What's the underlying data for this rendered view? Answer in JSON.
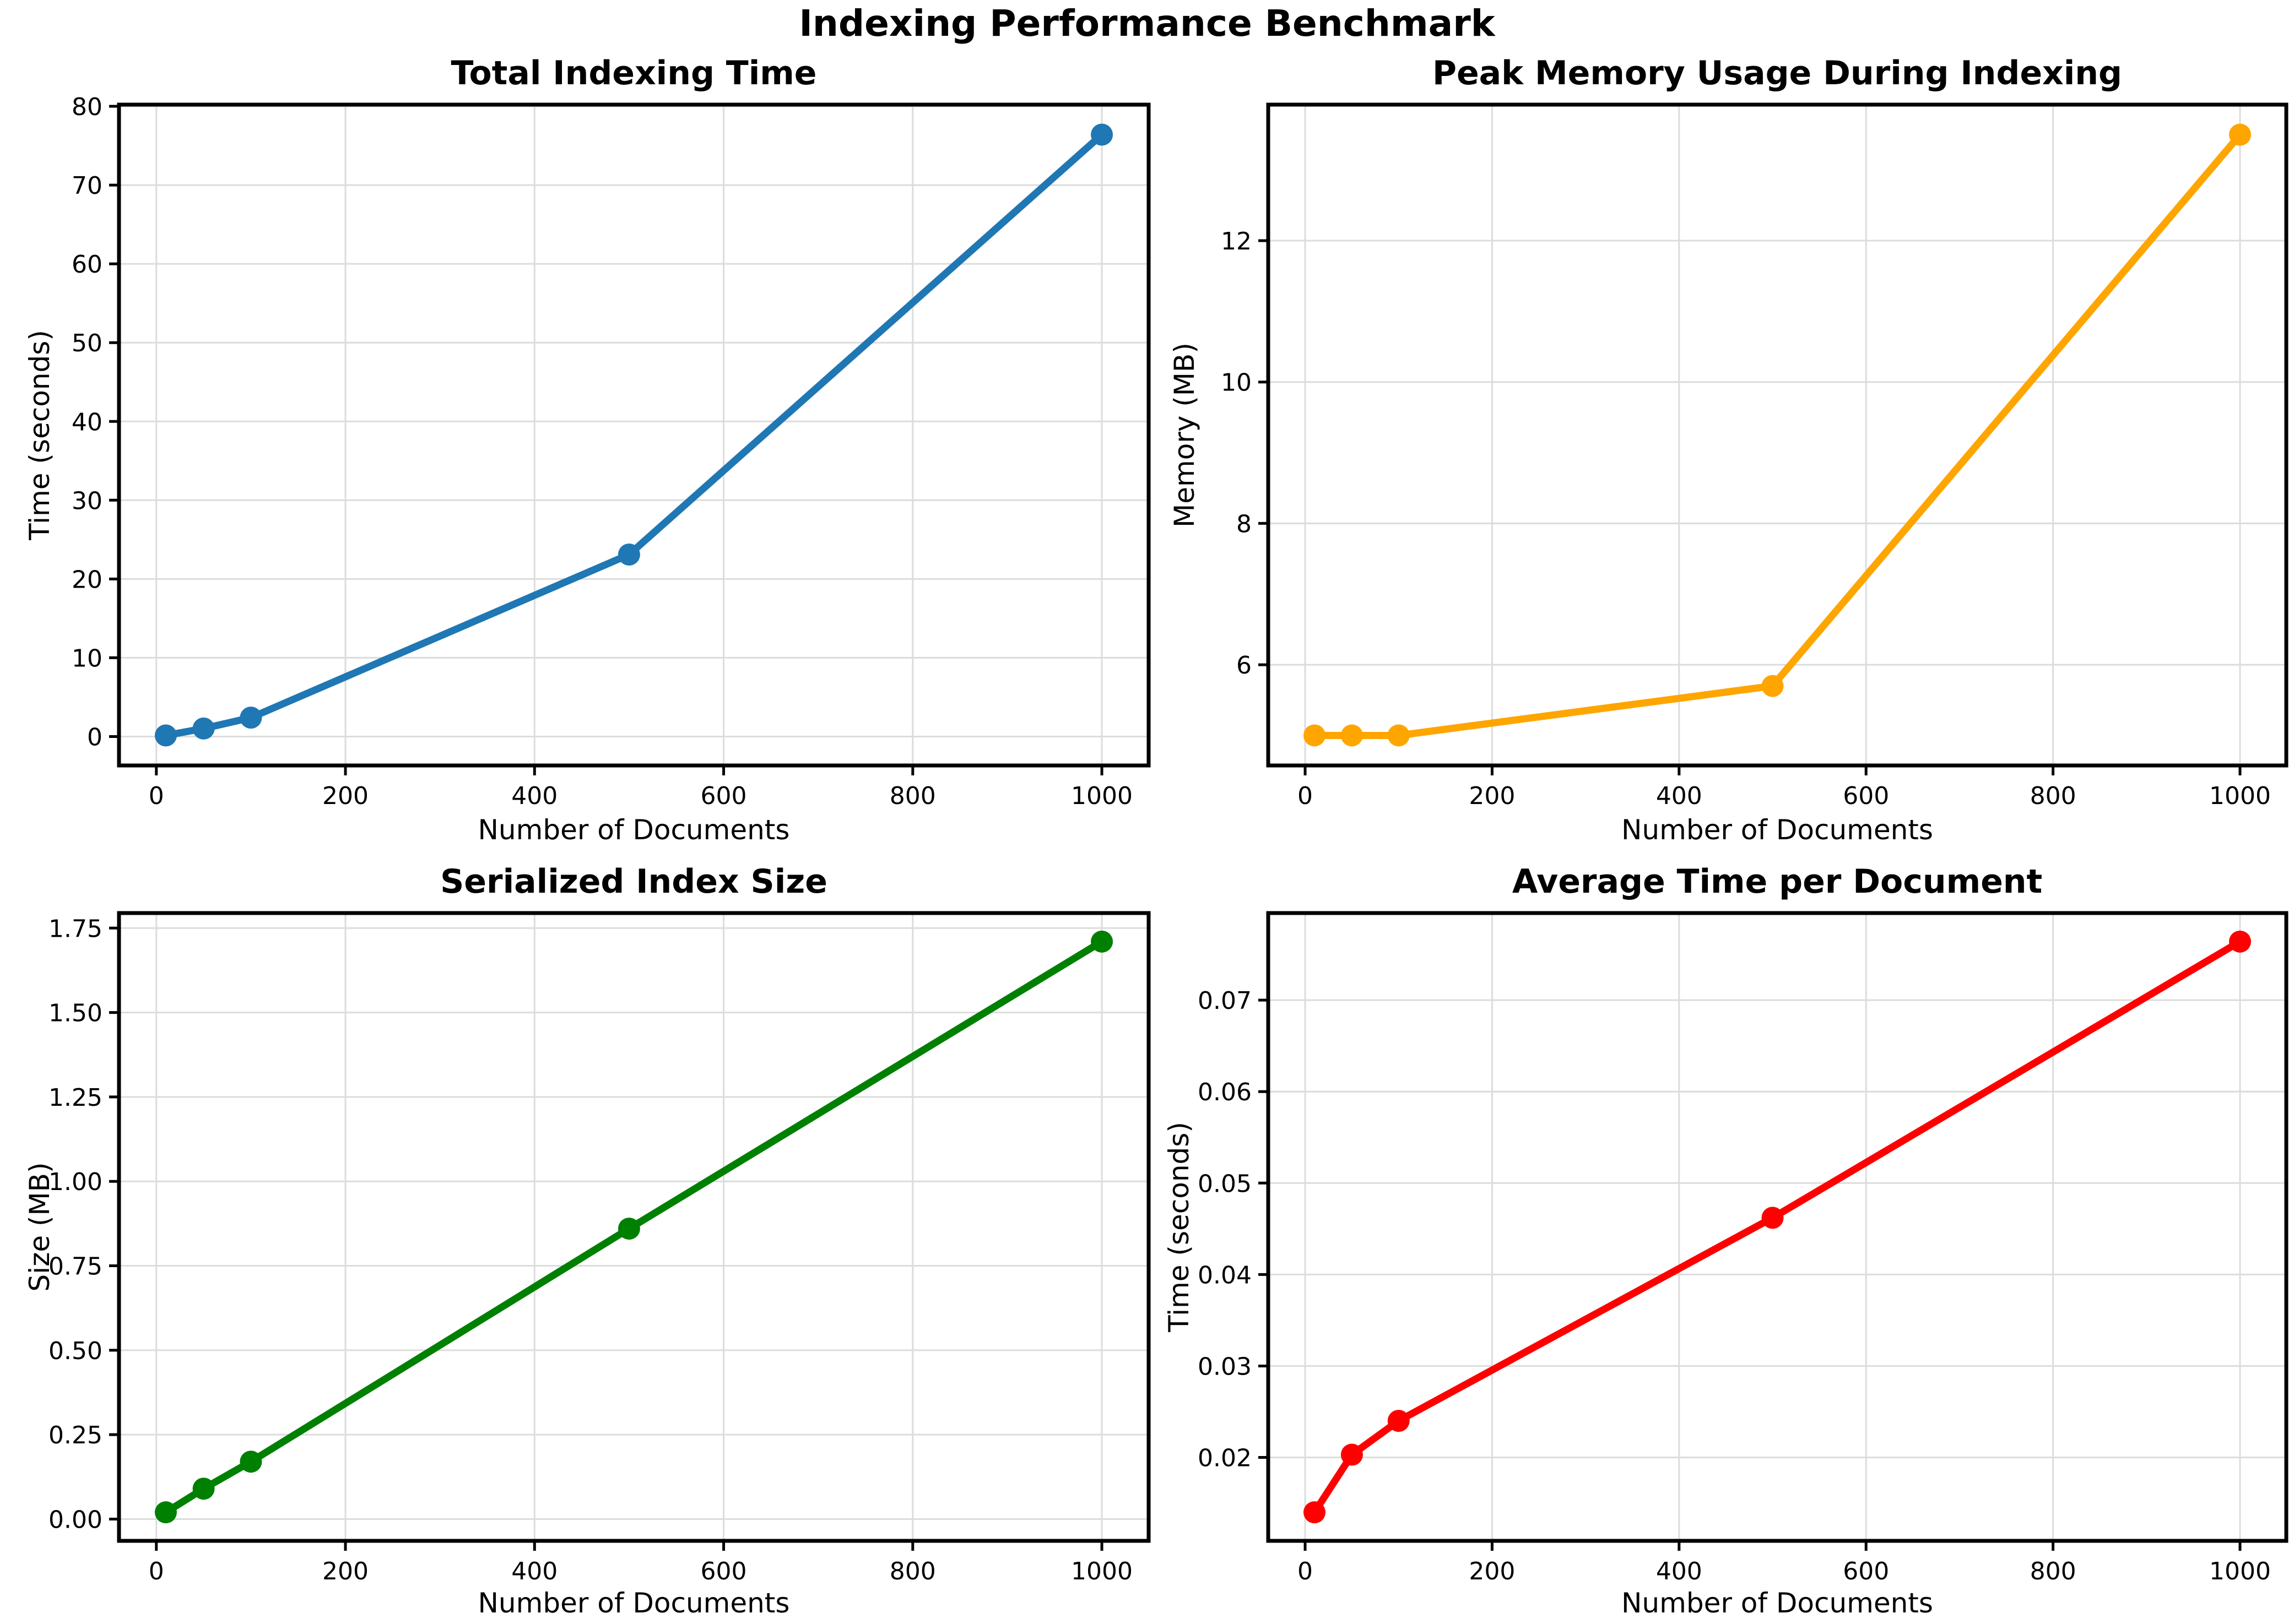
{
  "figure": {
    "title": "Indexing Performance Benchmark"
  },
  "chart_data": [
    {
      "type": "line",
      "title": "Total Indexing Time",
      "xlabel": "Number of Documents",
      "ylabel": "Time (seconds)",
      "color": "#1f77b4",
      "grid": true,
      "legend": "none",
      "x": [
        10,
        50,
        100,
        500,
        1000
      ],
      "y": [
        0.14,
        1.02,
        2.4,
        23.1,
        76.4
      ],
      "xlim": [
        -39.5,
        1049.5
      ],
      "ylim": [
        -3.67,
        80.21
      ],
      "xtick_values": [
        0,
        200,
        400,
        600,
        800,
        1000
      ],
      "xtick_labels": [
        "0",
        "200",
        "400",
        "600",
        "800",
        "1000"
      ],
      "ytick_values": [
        0,
        10,
        20,
        30,
        40,
        50,
        60,
        70,
        80
      ],
      "ytick_labels": [
        "0",
        "10",
        "20",
        "30",
        "40",
        "50",
        "60",
        "70",
        "80"
      ]
    },
    {
      "type": "line",
      "title": "Peak Memory Usage During Indexing",
      "xlabel": "Number of Documents",
      "ylabel": "Memory (MB)",
      "color": "#ffa500",
      "grid": true,
      "legend": "none",
      "x": [
        10,
        50,
        100,
        500,
        1000
      ],
      "y": [
        5.0,
        5.0,
        5.0,
        5.7,
        13.5
      ],
      "xlim": [
        -39.5,
        1049.5
      ],
      "ylim": [
        4.575,
        13.925
      ],
      "xtick_values": [
        0,
        200,
        400,
        600,
        800,
        1000
      ],
      "xtick_labels": [
        "0",
        "200",
        "400",
        "600",
        "800",
        "1000"
      ],
      "ytick_values": [
        6,
        8,
        10,
        12
      ],
      "ytick_labels": [
        "6",
        "8",
        "10",
        "12"
      ]
    },
    {
      "type": "line",
      "title": "Serialized Index Size",
      "xlabel": "Number of Documents",
      "ylabel": "Size (MB)",
      "color": "#008000",
      "grid": true,
      "legend": "none",
      "x": [
        10,
        50,
        100,
        500,
        1000
      ],
      "y": [
        0.02,
        0.09,
        0.17,
        0.86,
        1.71
      ],
      "xlim": [
        -39.5,
        1049.5
      ],
      "ylim": [
        -0.0645,
        1.7945
      ],
      "xtick_values": [
        0,
        200,
        400,
        600,
        800,
        1000
      ],
      "xtick_labels": [
        "0",
        "200",
        "400",
        "600",
        "800",
        "1000"
      ],
      "ytick_values": [
        0.0,
        0.25,
        0.5,
        0.75,
        1.0,
        1.25,
        1.5,
        1.75
      ],
      "ytick_labels": [
        "0.00",
        "0.25",
        "0.50",
        "0.75",
        "1.00",
        "1.25",
        "1.50",
        "1.75"
      ]
    },
    {
      "type": "line",
      "title": "Average Time per Document",
      "xlabel": "Number of Documents",
      "ylabel": "Time (seconds)",
      "color": "#ff0000",
      "grid": true,
      "legend": "none",
      "x": [
        10,
        50,
        100,
        500,
        1000
      ],
      "y": [
        0.014,
        0.0203,
        0.024,
        0.0462,
        0.0764
      ],
      "xlim": [
        -39.5,
        1049.5
      ],
      "ylim": [
        0.01088,
        0.07952
      ],
      "xtick_values": [
        0,
        200,
        400,
        600,
        800,
        1000
      ],
      "xtick_labels": [
        "0",
        "200",
        "400",
        "600",
        "800",
        "1000"
      ],
      "ytick_values": [
        0.02,
        0.03,
        0.04,
        0.05,
        0.06,
        0.07
      ],
      "ytick_labels": [
        "0.02",
        "0.03",
        "0.04",
        "0.05",
        "0.06",
        "0.07"
      ]
    }
  ]
}
